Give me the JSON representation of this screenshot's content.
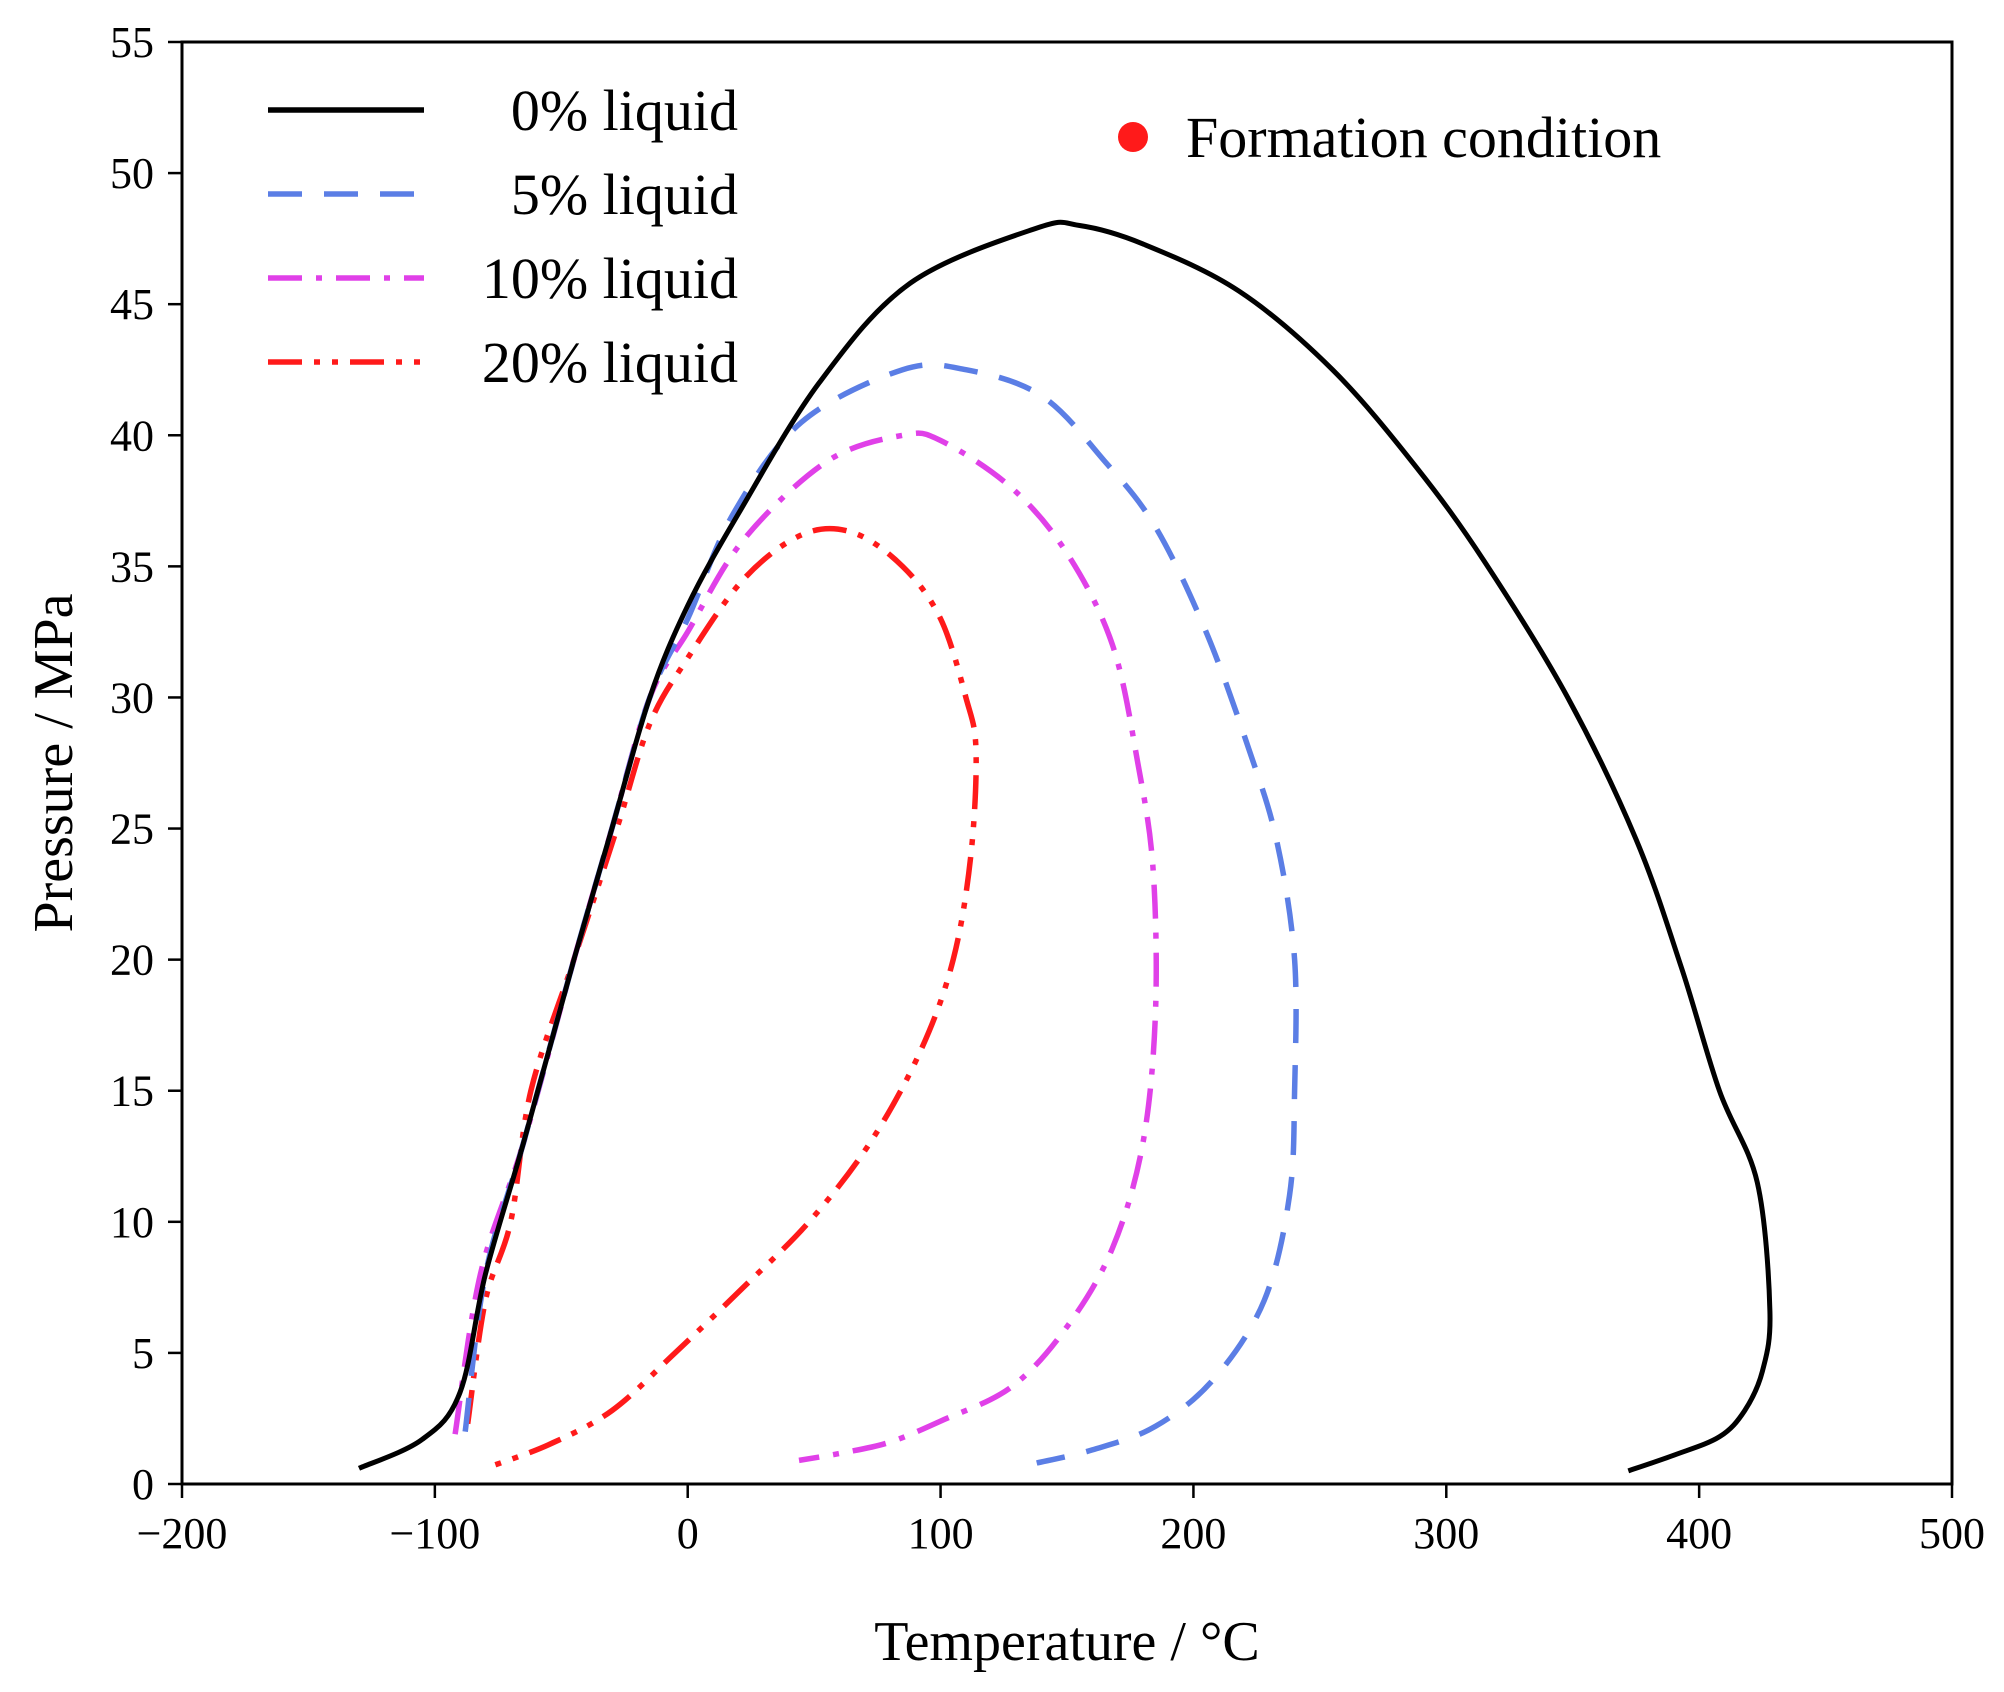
{
  "chart_data": {
    "type": "line",
    "title": "",
    "xlabel": "Temperature / °C",
    "ylabel": "Pressure / MPa",
    "xlim": [
      -200,
      500
    ],
    "ylim": [
      0,
      55
    ],
    "xticks": [
      -200,
      -100,
      0,
      100,
      200,
      300,
      400,
      500
    ],
    "yticks": [
      0,
      5,
      10,
      15,
      20,
      25,
      30,
      35,
      40,
      45,
      50,
      55
    ],
    "xtick_labels": [
      "−200",
      "−100",
      "0",
      "100",
      "200",
      "300",
      "400",
      "500"
    ],
    "ytick_labels": [
      "0",
      "5",
      "10",
      "15",
      "20",
      "25",
      "30",
      "35",
      "40",
      "45",
      "50",
      "55"
    ],
    "grid": false,
    "legend_position": "top-left",
    "series": [
      {
        "name": "0% liquid",
        "color": "#000000",
        "style": "solid",
        "points": [
          [
            -130,
            0.6
          ],
          [
            -105,
            1.7
          ],
          [
            -90,
            3.5
          ],
          [
            -80,
            8
          ],
          [
            -65,
            13
          ],
          [
            -45,
            20
          ],
          [
            -30,
            25
          ],
          [
            -15,
            30
          ],
          [
            0,
            33.5
          ],
          [
            20,
            37
          ],
          [
            52,
            42
          ],
          [
            88,
            45.8
          ],
          [
            138,
            47.9
          ],
          [
            155,
            48
          ],
          [
            180,
            47.3
          ],
          [
            218,
            45.5
          ],
          [
            255,
            42.5
          ],
          [
            288,
            38.8
          ],
          [
            315,
            35.2
          ],
          [
            348,
            30
          ],
          [
            375,
            24.6
          ],
          [
            393,
            19.7
          ],
          [
            408,
            15
          ],
          [
            423,
            11.5
          ],
          [
            428,
            6.6
          ],
          [
            425,
            4.3
          ],
          [
            418,
            2.8
          ],
          [
            408,
            1.8
          ],
          [
            390,
            1.1
          ],
          [
            372,
            0.5
          ]
        ]
      },
      {
        "name": "5% liquid",
        "color": "#5b7ee5",
        "style": "dash",
        "points": [
          [
            -88,
            2
          ],
          [
            -80,
            8
          ],
          [
            -65,
            13
          ],
          [
            -45,
            20
          ],
          [
            -30,
            25
          ],
          [
            -15,
            30
          ],
          [
            0,
            33
          ],
          [
            18,
            37
          ],
          [
            45,
            40.5
          ],
          [
            85,
            42.5
          ],
          [
            110,
            42.5
          ],
          [
            140,
            41.5
          ],
          [
            165,
            39
          ],
          [
            185,
            36.5
          ],
          [
            205,
            32.5
          ],
          [
            222,
            28
          ],
          [
            233,
            24.5
          ],
          [
            240,
            20
          ],
          [
            240,
            15
          ],
          [
            238,
            11
          ],
          [
            228,
            7
          ],
          [
            208,
            4
          ],
          [
            185,
            2.2
          ],
          [
            160,
            1.3
          ],
          [
            138,
            0.8
          ]
        ]
      },
      {
        "name": "10% liquid",
        "color": "#e040e8",
        "style": "dashdot",
        "points": [
          [
            -92,
            1.9
          ],
          [
            -82,
            8
          ],
          [
            -65,
            13
          ],
          [
            -45,
            20
          ],
          [
            -30,
            25
          ],
          [
            -15,
            30
          ],
          [
            0,
            32.5
          ],
          [
            22,
            36
          ],
          [
            55,
            39
          ],
          [
            85,
            40
          ],
          [
            100,
            39.8
          ],
          [
            128,
            38
          ],
          [
            150,
            35.5
          ],
          [
            168,
            32
          ],
          [
            178,
            27.5
          ],
          [
            184,
            23.5
          ],
          [
            185,
            18
          ],
          [
            180,
            13
          ],
          [
            168,
            9
          ],
          [
            150,
            6
          ],
          [
            128,
            3.7
          ],
          [
            100,
            2.4
          ],
          [
            80,
            1.6
          ],
          [
            62,
            1.2
          ],
          [
            44,
            0.9
          ]
        ]
      },
      {
        "name": "20% liquid",
        "color": "#ff1a1a",
        "style": "dashdotdot",
        "points": [
          [
            -87,
            2.3
          ],
          [
            -80,
            7
          ],
          [
            -70,
            10
          ],
          [
            -62,
            15
          ],
          [
            -45,
            20
          ],
          [
            -28,
            25
          ],
          [
            -15,
            29
          ],
          [
            0,
            31.5
          ],
          [
            22,
            34.5
          ],
          [
            45,
            36.2
          ],
          [
            65,
            36.3
          ],
          [
            85,
            35
          ],
          [
            100,
            33
          ],
          [
            110,
            30
          ],
          [
            114,
            28
          ],
          [
            112,
            24
          ],
          [
            105,
            20
          ],
          [
            92,
            16.5
          ],
          [
            72,
            13
          ],
          [
            48,
            10
          ],
          [
            22,
            7.5
          ],
          [
            -5,
            5
          ],
          [
            -30,
            2.8
          ],
          [
            -55,
            1.5
          ],
          [
            -80,
            0.6
          ]
        ]
      }
    ],
    "annotations": [
      {
        "type": "marker",
        "label": "Formation condition",
        "color": "#ff0000",
        "x": null,
        "y": null
      }
    ]
  }
}
